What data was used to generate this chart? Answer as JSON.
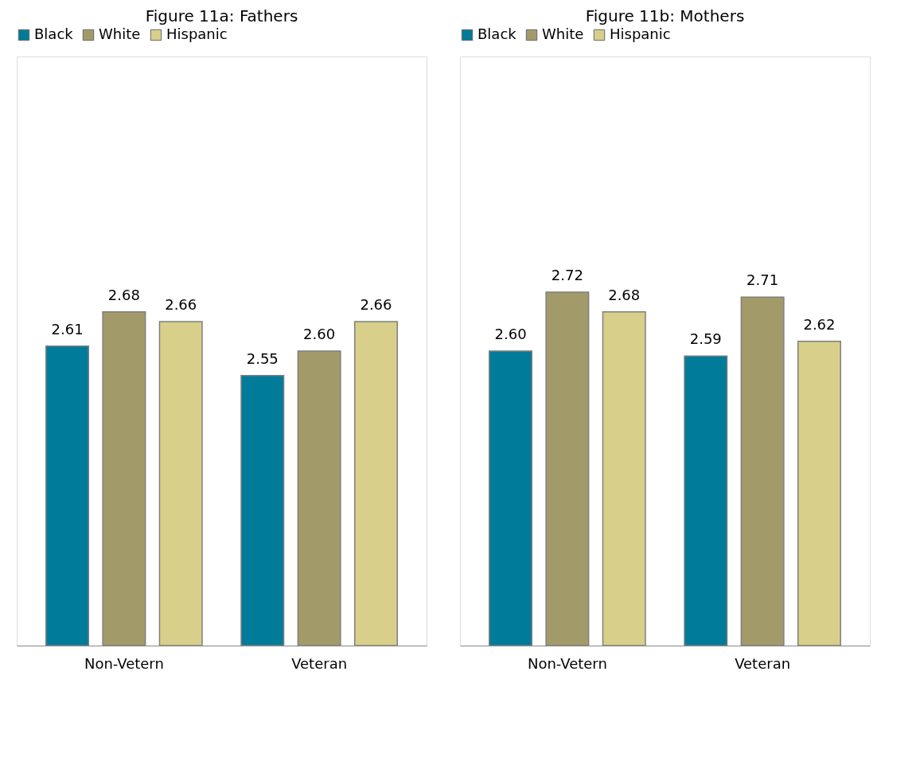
{
  "chart_data": [
    {
      "type": "bar",
      "title": "Figure 11a: Fathers",
      "categories": [
        "Non-Vetern",
        "Veteran"
      ],
      "series": [
        {
          "name": "Black",
          "color": "#007b99",
          "values": [
            2.61,
            2.55
          ],
          "value_labels": [
            "2.61",
            "2.55"
          ]
        },
        {
          "name": "White",
          "color": "#a39a6a",
          "values": [
            2.68,
            2.6
          ],
          "value_labels": [
            "2.68",
            "2.60"
          ]
        },
        {
          "name": "Hispanic",
          "color": "#d7cf8a",
          "values": [
            2.66,
            2.66
          ],
          "value_labels": [
            "2.66",
            "2.66"
          ]
        }
      ],
      "ylim": [
        2.0,
        3.2
      ],
      "legend": "top",
      "grid": false,
      "tick_labels": "x"
    },
    {
      "type": "bar",
      "title": "Figure 11b: Mothers",
      "categories": [
        "Non-Vetern",
        "Veteran"
      ],
      "series": [
        {
          "name": "Black",
          "color": "#007b99",
          "values": [
            2.6,
            2.59
          ],
          "value_labels": [
            "2.60",
            "2.59"
          ]
        },
        {
          "name": "White",
          "color": "#a39a6a",
          "values": [
            2.72,
            2.71
          ],
          "value_labels": [
            "2.72",
            "2.71"
          ]
        },
        {
          "name": "Hispanic",
          "color": "#d7cf8a",
          "values": [
            2.68,
            2.62
          ],
          "value_labels": [
            "2.68",
            "2.62"
          ]
        }
      ],
      "ylim": [
        2.0,
        3.2
      ],
      "legend": "top",
      "grid": false,
      "tick_labels": "x"
    }
  ]
}
